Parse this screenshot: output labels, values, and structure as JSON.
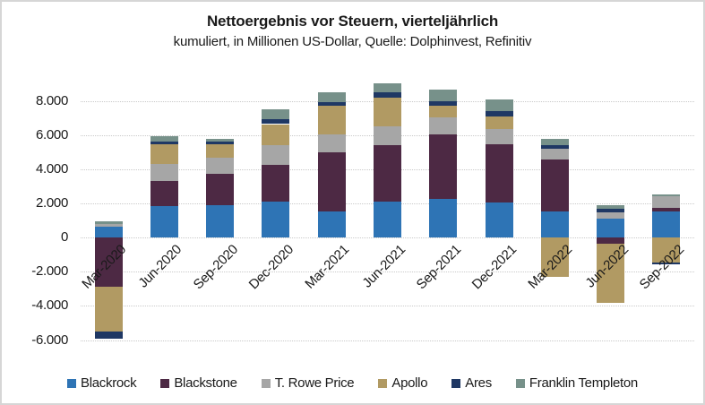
{
  "title": "Nettoergebnis vor Steuern, vierteljährlich",
  "subtitle": "kumuliert, in Millionen US-Dollar, Quelle: Dolphinvest, Refinitiv",
  "colors": {
    "background": "#FFFFFF",
    "frame_border": "#D6D6D6",
    "gridline": "#C9C9C9",
    "text": "#1A1A1A"
  },
  "chart_data": {
    "type": "bar",
    "stacked": true,
    "grid": true,
    "legend_position": "bottom",
    "ylim": [
      -6600,
      9300
    ],
    "categories": [
      "Mar-2020",
      "Jun-2020",
      "Sep-2020",
      "Dec-2020",
      "Mar-2021",
      "Jun-2021",
      "Sep-2021",
      "Dec-2021",
      "Mar-2022",
      "Jun-2022",
      "Sep-2022"
    ],
    "yticks": [
      {
        "value": 8000,
        "label": "8.000"
      },
      {
        "value": 6000,
        "label": "6.000"
      },
      {
        "value": 4000,
        "label": "4.000"
      },
      {
        "value": 2000,
        "label": "2.000"
      },
      {
        "value": 0,
        "label": "0"
      },
      {
        "value": -2000,
        "label": "-2.000"
      },
      {
        "value": -4000,
        "label": "-4.000"
      },
      {
        "value": -6000,
        "label": "-6.000"
      }
    ],
    "series": [
      {
        "name": "Blackrock",
        "color": "#2E74B5",
        "values": [
          650,
          1850,
          1900,
          2100,
          1550,
          2100,
          2250,
          2050,
          1550,
          1100,
          1550
        ]
      },
      {
        "name": "Blackstone",
        "color": "#4D2944",
        "values": [
          -2850,
          1450,
          1850,
          2150,
          3450,
          3300,
          3800,
          3400,
          3050,
          -350,
          175
        ]
      },
      {
        "name": "T. Rowe Price",
        "color": "#A6A6A6",
        "values": [
          150,
          1000,
          950,
          1150,
          1050,
          1100,
          1000,
          900,
          600,
          400,
          700
        ]
      },
      {
        "name": "Apollo",
        "color": "#B19A63",
        "values": [
          -2650,
          1150,
          750,
          1250,
          1650,
          1700,
          650,
          750,
          -2300,
          -3450,
          -1450
        ]
      },
      {
        "name": "Ares",
        "color": "#1F3864",
        "values": [
          -400,
          200,
          175,
          280,
          250,
          300,
          300,
          300,
          200,
          175,
          -100
        ]
      },
      {
        "name": "Franklin Templeton",
        "color": "#77918A",
        "values": [
          150,
          275,
          175,
          600,
          550,
          550,
          650,
          700,
          400,
          225,
          100
        ]
      }
    ]
  }
}
